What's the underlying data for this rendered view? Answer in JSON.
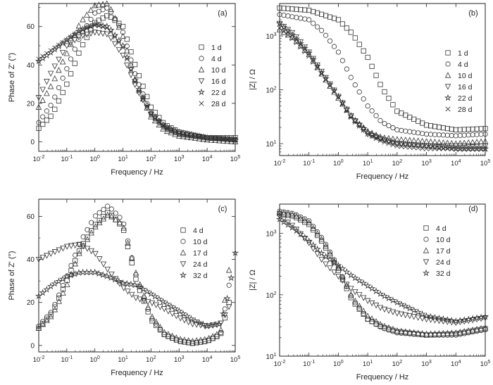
{
  "chart_data": [
    {
      "panel": "(a)",
      "type": "scatter",
      "xscale": "log",
      "xlabel": "Frequency / Hz",
      "ylabel": "Phase of  Z' (°)",
      "xlim": [
        0.01,
        100000
      ],
      "ylim": [
        -5,
        72
      ],
      "yticks": [
        0,
        20,
        40,
        60
      ],
      "legend_position": "right",
      "series": [
        {
          "name": "1 d",
          "marker": "square",
          "x": [
            0.01,
            0.03,
            0.1,
            0.3,
            1,
            3,
            10,
            30,
            100,
            300,
            1000,
            10000,
            100000
          ],
          "y": [
            7,
            14,
            30,
            48,
            62,
            66,
            60,
            38,
            18,
            9,
            5,
            2,
            1
          ]
        },
        {
          "name": "4 d",
          "marker": "circle",
          "x": [
            0.01,
            0.03,
            0.1,
            0.3,
            1,
            3,
            10,
            30,
            100,
            300,
            1000,
            10000,
            100000
          ],
          "y": [
            10,
            20,
            38,
            55,
            67,
            70,
            57,
            33,
            15,
            8,
            4,
            2,
            1
          ]
        },
        {
          "name": "10 d",
          "marker": "triangle-up",
          "x": [
            0.01,
            0.03,
            0.1,
            0.3,
            1,
            3,
            10,
            30,
            100,
            300,
            1000,
            10000,
            100000
          ],
          "y": [
            18,
            30,
            46,
            62,
            71,
            72,
            55,
            30,
            13,
            6,
            3,
            1,
            0
          ]
        },
        {
          "name": "16 d",
          "marker": "triangle-down",
          "x": [
            0.01,
            0.03,
            0.1,
            0.3,
            1,
            3,
            10,
            30,
            100,
            300,
            1000,
            10000,
            100000
          ],
          "y": [
            23,
            37,
            50,
            55,
            57,
            56,
            45,
            28,
            14,
            7,
            4,
            2,
            2
          ]
        },
        {
          "name": "22 d",
          "marker": "star",
          "x": [
            0.01,
            0.03,
            0.1,
            0.3,
            1,
            3,
            10,
            30,
            100,
            300,
            1000,
            10000,
            100000
          ],
          "y": [
            42,
            47,
            53,
            58,
            61,
            60,
            50,
            30,
            15,
            8,
            5,
            2,
            1
          ]
        },
        {
          "name": "28 d",
          "marker": "cross",
          "x": [
            0.01,
            0.03,
            0.1,
            0.3,
            1,
            3,
            10,
            30,
            100,
            300,
            1000,
            10000,
            100000
          ],
          "y": [
            43,
            48,
            53,
            58,
            61,
            59,
            49,
            29,
            14,
            8,
            4,
            2,
            1
          ]
        }
      ]
    },
    {
      "panel": "(b)",
      "type": "scatter",
      "xscale": "log",
      "yscale": "log",
      "xlabel": "Frequency / Hz",
      "ylabel": "|Z| / Ω",
      "xlim": [
        0.01,
        100000
      ],
      "ylim": [
        6,
        4000
      ],
      "legend_position": "right",
      "series": [
        {
          "name": "1 d",
          "marker": "square",
          "x": [
            0.01,
            0.1,
            1,
            3,
            10,
            30,
            100,
            1000,
            10000,
            100000
          ],
          "y": [
            3300,
            3000,
            2000,
            1100,
            400,
            110,
            40,
            22,
            18,
            19
          ]
        },
        {
          "name": "4 d",
          "marker": "circle",
          "x": [
            0.01,
            0.1,
            0.3,
            1,
            3,
            10,
            30,
            100,
            1000,
            10000,
            100000
          ],
          "y": [
            2500,
            2000,
            1200,
            500,
            150,
            50,
            25,
            18,
            15,
            14,
            15
          ]
        },
        {
          "name": "10 d",
          "marker": "triangle-up",
          "x": [
            0.01,
            0.03,
            0.1,
            0.3,
            1,
            3,
            10,
            30,
            100,
            1000,
            10000,
            100000
          ],
          "y": [
            1300,
            900,
            450,
            180,
            70,
            30,
            17,
            13,
            12,
            11,
            10,
            11
          ]
        },
        {
          "name": "16 d",
          "marker": "triangle-down",
          "x": [
            0.01,
            0.03,
            0.1,
            0.3,
            1,
            3,
            10,
            30,
            100,
            1000,
            10000,
            100000
          ],
          "y": [
            1700,
            1100,
            500,
            200,
            75,
            30,
            15,
            12,
            10,
            9,
            9,
            9
          ]
        },
        {
          "name": "22 d",
          "marker": "star",
          "x": [
            0.01,
            0.03,
            0.1,
            0.3,
            1,
            3,
            10,
            30,
            100,
            1000,
            10000,
            100000
          ],
          "y": [
            1700,
            1000,
            480,
            190,
            75,
            30,
            16,
            12,
            10,
            9,
            8,
            8
          ]
        },
        {
          "name": "28 d",
          "marker": "cross",
          "x": [
            0.01,
            0.03,
            0.1,
            0.3,
            1,
            3,
            10,
            30,
            100,
            1000,
            10000,
            100000
          ],
          "y": [
            1400,
            850,
            420,
            180,
            72,
            28,
            15,
            11,
            9,
            8,
            8,
            8
          ]
        }
      ]
    },
    {
      "panel": "(c)",
      "type": "scatter",
      "xscale": "log",
      "xlabel": "Frequency / Hz",
      "ylabel": "Phase of  Z' (°)",
      "xlim": [
        0.01,
        100000
      ],
      "ylim": [
        -3,
        68
      ],
      "yticks": [
        0,
        20,
        40,
        60
      ],
      "legend_position": "right",
      "series": [
        {
          "name": "4 d",
          "marker": "square",
          "x": [
            0.01,
            0.03,
            0.1,
            0.3,
            1,
            3,
            10,
            30,
            100,
            300,
            1000,
            3000,
            10000,
            30000,
            60000
          ],
          "y": [
            8,
            15,
            30,
            45,
            56,
            62,
            55,
            30,
            12,
            5,
            2,
            1,
            2,
            5,
            20
          ]
        },
        {
          "name": "10 d",
          "marker": "circle",
          "x": [
            0.01,
            0.03,
            0.1,
            0.3,
            1,
            3,
            10,
            30,
            100,
            300,
            1000,
            3000,
            10000,
            30000,
            60000
          ],
          "y": [
            9,
            16,
            32,
            48,
            60,
            65,
            58,
            32,
            13,
            5,
            2,
            1,
            2,
            5,
            28
          ]
        },
        {
          "name": "17 d",
          "marker": "triangle-up",
          "x": [
            0.01,
            0.03,
            0.1,
            0.3,
            1,
            3,
            10,
            30,
            100,
            300,
            1000,
            3000,
            10000,
            30000,
            60000
          ],
          "y": [
            8,
            14,
            28,
            44,
            55,
            61,
            56,
            33,
            14,
            6,
            3,
            2,
            3,
            6,
            35
          ]
        },
        {
          "name": "24 d",
          "marker": "triangle-down",
          "x": [
            0.01,
            0.03,
            0.1,
            0.3,
            1,
            3,
            10,
            30,
            100,
            300,
            1000,
            3000,
            10000,
            30000,
            60000
          ],
          "y": [
            40,
            43,
            46,
            47,
            43,
            35,
            27,
            22,
            20,
            17,
            13,
            10,
            9,
            10,
            18
          ]
        },
        {
          "name": "32 d",
          "marker": "star",
          "x": [
            0.01,
            0.03,
            0.1,
            0.3,
            1,
            3,
            10,
            30,
            100,
            300,
            1000,
            3000,
            10000,
            30000,
            60000,
            100000
          ],
          "y": [
            23,
            28,
            32,
            34,
            34,
            32,
            29,
            28,
            24,
            20,
            16,
            12,
            9,
            10,
            25,
            43
          ]
        }
      ]
    },
    {
      "panel": "(d)",
      "type": "scatter",
      "xscale": "log",
      "yscale": "log",
      "xlabel": "Frequency / Hz",
      "ylabel": "|Z| / Ω",
      "xlim": [
        0.01,
        100000
      ],
      "ylim": [
        10,
        3000
      ],
      "legend_position": "top-right",
      "series": [
        {
          "name": "4 d",
          "marker": "square",
          "x": [
            0.01,
            0.03,
            0.1,
            0.3,
            1,
            3,
            10,
            30,
            100,
            1000,
            10000,
            100000
          ],
          "y": [
            2100,
            1900,
            1400,
            700,
            250,
            80,
            40,
            30,
            25,
            22,
            23,
            28
          ]
        },
        {
          "name": "10 d",
          "marker": "circle",
          "x": [
            0.01,
            0.03,
            0.1,
            0.3,
            1,
            3,
            10,
            30,
            100,
            1000,
            10000,
            100000
          ],
          "y": [
            2300,
            2100,
            1600,
            800,
            280,
            85,
            40,
            29,
            24,
            22,
            22,
            27
          ]
        },
        {
          "name": "17 d",
          "marker": "triangle-up",
          "x": [
            0.01,
            0.03,
            0.1,
            0.3,
            1,
            3,
            10,
            30,
            100,
            1000,
            10000,
            100000
          ],
          "y": [
            2200,
            2000,
            1500,
            750,
            270,
            90,
            45,
            32,
            26,
            23,
            24,
            29
          ]
        },
        {
          "name": "24 d",
          "marker": "triangle-down",
          "x": [
            0.01,
            0.03,
            0.1,
            0.3,
            1,
            3,
            10,
            30,
            100,
            1000,
            10000,
            100000
          ],
          "y": [
            1900,
            1300,
            700,
            350,
            200,
            120,
            80,
            60,
            50,
            40,
            35,
            42
          ]
        },
        {
          "name": "32 d",
          "marker": "star",
          "x": [
            0.01,
            0.03,
            0.1,
            0.3,
            1,
            3,
            10,
            30,
            100,
            1000,
            10000,
            100000
          ],
          "y": [
            1700,
            1200,
            750,
            450,
            300,
            200,
            140,
            100,
            75,
            45,
            37,
            44
          ]
        }
      ]
    }
  ]
}
